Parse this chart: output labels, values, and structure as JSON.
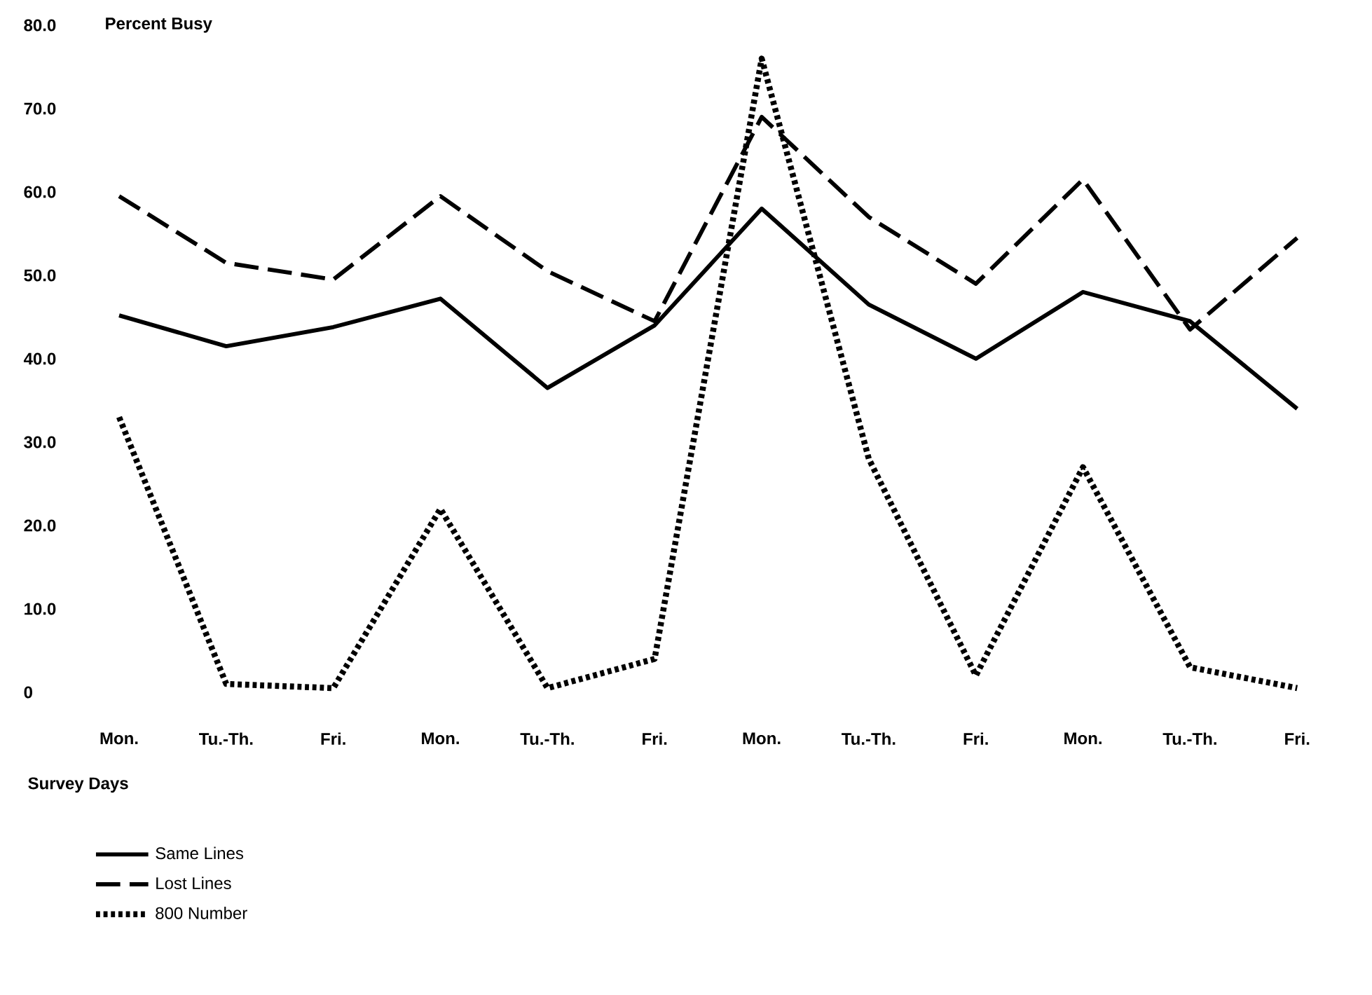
{
  "chart_data": {
    "type": "line",
    "ylabel": "Percent Busy",
    "xlabel": "Survey Days",
    "categories": [
      "Mon.",
      "Tu.-Th.",
      "Fri.",
      "Mon.",
      "Tu.-Th.",
      "Fri.",
      "Mon.",
      "Tu.-Th.",
      "Fri.",
      "Mon.",
      "Tu.-Th.",
      "Fri."
    ],
    "ylim": [
      0,
      80
    ],
    "yticks": [
      0,
      {
        "value": 10,
        "label": "10.0"
      },
      {
        "value": 20,
        "label": "20.0"
      },
      {
        "value": 30,
        "label": "30.0"
      },
      {
        "value": 40,
        "label": "40.0"
      },
      {
        "value": 50,
        "label": "50.0"
      },
      {
        "value": 60,
        "label": "60.0"
      },
      {
        "value": 70,
        "label": "70.0"
      },
      {
        "value": 80,
        "label": "80.0"
      }
    ],
    "legend": "bottom left",
    "marker": "none",
    "series": [
      {
        "name": "Same Lines",
        "color": "#000000",
        "line_style": "solid",
        "values": [
          45.2,
          41.5,
          43.8,
          47.2,
          36.5,
          44,
          58,
          46.5,
          40,
          48,
          44.5,
          34
        ]
      },
      {
        "name": "Lost Lines",
        "color": "#000000",
        "line_style": "dashed",
        "values": [
          59.5,
          51.5,
          49.5,
          59.5,
          50.5,
          44.5,
          69,
          57,
          49,
          61.5,
          43.5,
          54.5
        ]
      },
      {
        "name": "800 Number",
        "color": "#000000",
        "line_style": "dotted",
        "values": [
          33,
          1,
          0.5,
          22,
          0.5,
          4,
          76,
          28,
          2,
          27,
          3,
          0.5
        ]
      }
    ]
  }
}
